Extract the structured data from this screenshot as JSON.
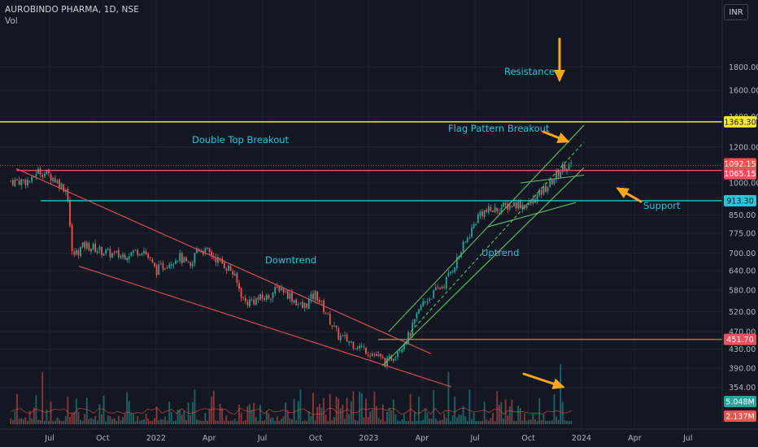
{
  "header": {
    "symbol": "AUROBINDO PHARMA, 1D, NSE",
    "volume_label": "Vol",
    "currency_button": "INR"
  },
  "colors": {
    "background": "#131722",
    "grid": "#1e222d",
    "axis_text": "#b2b5be",
    "candle_up": "#26a69a",
    "candle_down": "#ef5350",
    "channel_down": "#e0515e",
    "channel_up": "#66bb6a",
    "annotation_text": "#26c6da",
    "arrow": "#f5a623",
    "resistance": "#f5e53b",
    "support": "#26c6da",
    "double_top": "#ef4f5f"
  },
  "chart_data": {
    "type": "candlestick",
    "y_axis": {
      "scale": "log",
      "ticks": [
        "1800.00",
        "1600.00",
        "1400.00",
        "1200.00",
        "1000.00",
        "913.30",
        "850.00",
        "775.00",
        "700.00",
        "640.00",
        "580.00",
        "520.00",
        "470.00",
        "430.00",
        "390.00",
        "354.00"
      ]
    },
    "x_axis": {
      "ticks": [
        "Jul",
        "Oct",
        "2022",
        "Apr",
        "Jul",
        "Oct",
        "2023",
        "Apr",
        "Jul",
        "Oct",
        "2024",
        "Apr",
        "Jul"
      ]
    },
    "price_tags": [
      {
        "value": "1363.30",
        "color": "#f5e53b",
        "text_color": "#131722"
      },
      {
        "value": "1092.15",
        "color": "#ef5350",
        "text_color": "#ffffff"
      },
      {
        "value": "1065.15",
        "color": "#ef4f5f",
        "text_color": "#ffffff"
      },
      {
        "value": "913.30",
        "color": "#26c6da",
        "text_color": "#131722"
      },
      {
        "value": "451.70",
        "color": "#ef4f5f",
        "text_color": "#ffffff"
      }
    ],
    "volume_tags": [
      {
        "value": "5.048M",
        "color": "#26a69a"
      },
      {
        "value": "2.137M",
        "color": "#ef5350"
      }
    ],
    "horizontal_levels": [
      {
        "price": 1363.3,
        "color": "#f5e53b"
      },
      {
        "price": 1065.15,
        "color": "#ef4f5f"
      },
      {
        "price": 913.3,
        "color": "#26c6da"
      },
      {
        "price": 451.7,
        "color": "#ef4f5f"
      }
    ],
    "annotations": [
      {
        "text": "Resistance"
      },
      {
        "text": "Flag Pattern Breakout"
      },
      {
        "text": "Double Top Breakout"
      },
      {
        "text": "Support"
      },
      {
        "text": "Downtrend"
      },
      {
        "text": "Uptrend"
      }
    ],
    "price_path": [
      [
        "2021-06",
        1010
      ],
      [
        "2021-06",
        1065
      ],
      [
        "2021-07",
        1040
      ],
      [
        "2021-07",
        1020
      ],
      [
        "2021-08",
        960
      ],
      [
        "2021-08",
        690
      ],
      [
        "2021-09",
        730
      ],
      [
        "2021-10",
        700
      ],
      [
        "2021-11",
        690
      ],
      [
        "2021-12",
        715
      ],
      [
        "2022-01",
        640
      ],
      [
        "2022-02",
        690
      ],
      [
        "2022-03",
        645
      ],
      [
        "2022-03",
        720
      ],
      [
        "2022-04",
        700
      ],
      [
        "2022-05",
        640
      ],
      [
        "2022-06",
        545
      ],
      [
        "2022-07",
        560
      ],
      [
        "2022-08",
        590
      ],
      [
        "2022-09",
        530
      ],
      [
        "2022-10",
        570
      ],
      [
        "2022-11",
        460
      ],
      [
        "2022-12",
        445
      ],
      [
        "2023-01",
        420
      ],
      [
        "2023-02",
        400
      ],
      [
        "2023-03",
        460
      ],
      [
        "2023-04",
        540
      ],
      [
        "2023-05",
        600
      ],
      [
        "2023-06",
        680
      ],
      [
        "2023-07",
        860
      ],
      [
        "2023-08",
        870
      ],
      [
        "2023-09",
        900
      ],
      [
        "2023-10",
        890
      ],
      [
        "2023-11",
        1000
      ],
      [
        "2023-12",
        1092
      ]
    ]
  }
}
